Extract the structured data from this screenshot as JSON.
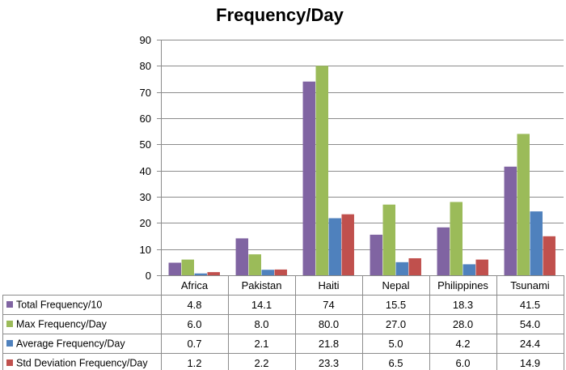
{
  "chart_data": {
    "type": "bar",
    "title": "Frequency/Day",
    "xlabel": "",
    "ylabel": "",
    "ylim": [
      0,
      90
    ],
    "yticks": [
      0,
      10,
      20,
      30,
      40,
      50,
      60,
      70,
      80,
      90
    ],
    "grid": true,
    "legend": "data-table-left",
    "categories": [
      "Africa",
      "Pakistan",
      "Haiti",
      "Nepal",
      "Philippines",
      "Tsunami"
    ],
    "series": [
      {
        "name": "Total Frequency/10",
        "color": "#8064a2",
        "values": [
          4.8,
          14.1,
          74,
          15.5,
          18.3,
          41.5
        ],
        "labels": [
          "4.8",
          "14.1",
          "74",
          "15.5",
          "18.3",
          "41.5"
        ]
      },
      {
        "name": "Max Frequency/Day",
        "color": "#9bbb59",
        "values": [
          6.0,
          8.0,
          80.0,
          27.0,
          28.0,
          54.0
        ],
        "labels": [
          "6.0",
          "8.0",
          "80.0",
          "27.0",
          "28.0",
          "54.0"
        ]
      },
      {
        "name": "Average Frequency/Day",
        "color": "#4f81bd",
        "values": [
          0.7,
          2.1,
          21.8,
          5.0,
          4.2,
          24.4
        ],
        "labels": [
          "0.7",
          "2.1",
          "21.8",
          "5.0",
          "4.2",
          "24.4"
        ]
      },
      {
        "name": "Std Deviation Frequency/Day",
        "color": "#c0504d",
        "values": [
          1.2,
          2.2,
          23.3,
          6.5,
          6.0,
          14.9
        ],
        "labels": [
          "1.2",
          "2.2",
          "23.3",
          "6.5",
          "6.0",
          "14.9"
        ]
      }
    ]
  }
}
